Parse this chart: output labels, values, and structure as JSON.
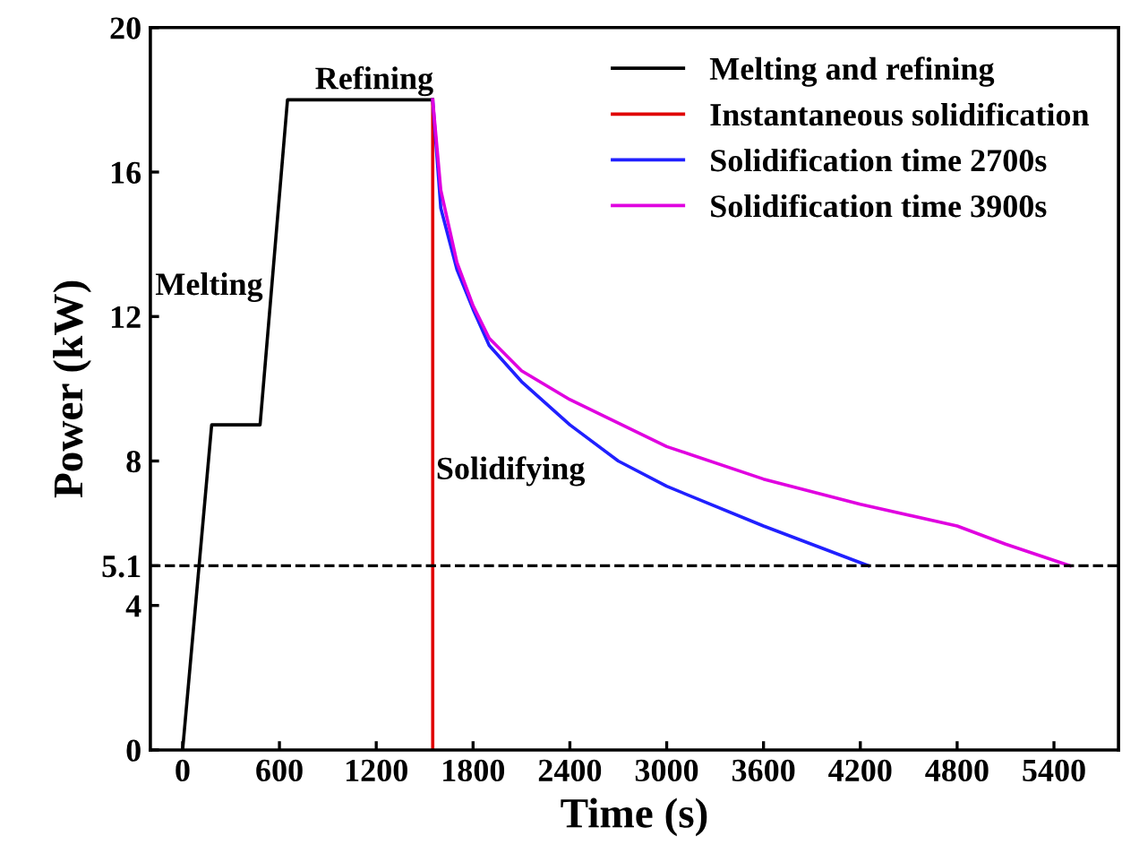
{
  "chart_data": {
    "type": "line",
    "xlabel": "Time (s)",
    "ylabel": "Power (kW)",
    "xlim": [
      -200,
      5800
    ],
    "xticks": [
      0,
      600,
      1200,
      1800,
      2400,
      3000,
      3600,
      4200,
      4800,
      5400
    ],
    "ylim": [
      0,
      20
    ],
    "yticks": [
      0,
      4,
      5.1,
      8,
      12,
      16,
      20
    ],
    "grid": false,
    "legend": "top right",
    "line_style": "solid",
    "marker": "none",
    "series": [
      {
        "name": "Melting and refining",
        "color": "#000000",
        "x": [
          0,
          180,
          480,
          650,
          1550
        ],
        "values": [
          0,
          9,
          9,
          18,
          18
        ]
      },
      {
        "name": "Instantaneous solidification",
        "color": "#e00000",
        "x": [
          1550,
          1550
        ],
        "values": [
          18,
          0
        ]
      },
      {
        "name": "Solidification time 2700s",
        "color": "#2020ff",
        "x": [
          1550,
          1600,
          1700,
          1800,
          1900,
          2100,
          2400,
          2700,
          3000,
          3600,
          4250
        ],
        "values": [
          18,
          15,
          13.3,
          12.2,
          11.2,
          10.2,
          9.0,
          8.0,
          7.3,
          6.2,
          5.1
        ]
      },
      {
        "name": "Solidification time 3900s",
        "color": "#e000e0",
        "x": [
          1550,
          1600,
          1700,
          1800,
          1900,
          2100,
          2400,
          3000,
          3600,
          4200,
          4800,
          5100,
          5500
        ],
        "values": [
          18,
          15.5,
          13.5,
          12.3,
          11.4,
          10.5,
          9.7,
          8.4,
          7.5,
          6.8,
          6.2,
          5.7,
          5.1
        ]
      }
    ],
    "ref_lines": [
      {
        "axis": "y",
        "value": 5.1,
        "color": "#000000",
        "line_style": "dashed"
      }
    ],
    "annotations": [
      "Melting",
      "Refining",
      {
        "text": "Solidifying",
        "x": 1570,
        "y": 7.5
      }
    ]
  }
}
